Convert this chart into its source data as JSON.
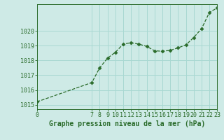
{
  "x": [
    0,
    7,
    8,
    9,
    10,
    11,
    12,
    13,
    14,
    15,
    16,
    17,
    18,
    19,
    20,
    21,
    22,
    23
  ],
  "y": [
    1015.2,
    1016.5,
    1017.5,
    1018.15,
    1018.55,
    1019.1,
    1019.2,
    1019.1,
    1018.95,
    1018.65,
    1018.62,
    1018.68,
    1018.85,
    1019.05,
    1019.55,
    1020.15,
    1021.25,
    1021.55
  ],
  "line_color": "#2a6b2a",
  "marker": "D",
  "marker_size": 2.5,
  "bg_color": "#ceeae6",
  "grid_color": "#a8d8d2",
  "yticks": [
    1015,
    1016,
    1017,
    1018,
    1019,
    1020
  ],
  "xticks": [
    0,
    7,
    8,
    9,
    10,
    11,
    12,
    13,
    14,
    15,
    16,
    17,
    18,
    19,
    20,
    21,
    22,
    23
  ],
  "xlabel": "Graphe pression niveau de la mer (hPa)",
  "xlim": [
    0,
    23
  ],
  "ylim": [
    1014.7,
    1021.8
  ],
  "xlabel_fontsize": 7,
  "tick_fontsize": 6
}
